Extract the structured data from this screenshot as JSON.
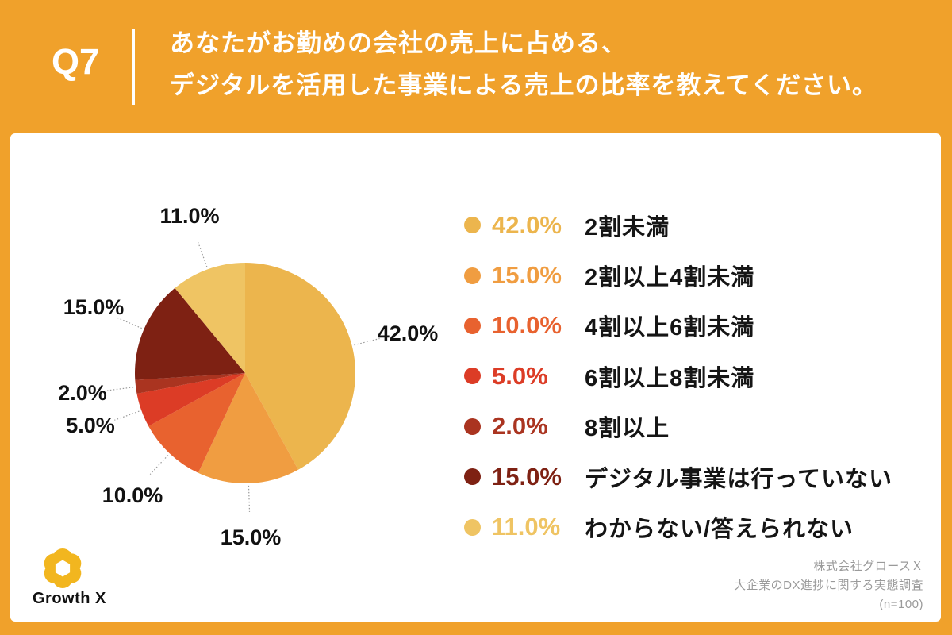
{
  "header": {
    "question_number": "Q7",
    "title_line1": "あなたがお勤めの会社の売上に占める、",
    "title_line2": "デジタルを活用した事業による売上の比率を教えてください。"
  },
  "chart_data": {
    "type": "pie",
    "title": "",
    "start_angle_deg": 0,
    "direction": "clockwise",
    "value_format": "percent_1dp",
    "legend_position": "right",
    "slices": [
      {
        "label": "2割未満",
        "value": 42.0,
        "color": "#ECB54D"
      },
      {
        "label": "2割以上4割未満",
        "value": 15.0,
        "color": "#F09D41"
      },
      {
        "label": "4割以上6割未満",
        "value": 10.0,
        "color": "#E8622F"
      },
      {
        "label": "6割以上8割未満",
        "value": 5.0,
        "color": "#DC3C26"
      },
      {
        "label": "8割以上",
        "value": 2.0,
        "color": "#AA3420"
      },
      {
        "label": "デジタル事業は行っていない",
        "value": 15.0,
        "color": "#7E2113"
      },
      {
        "label": "わからない/答えられない",
        "value": 11.0,
        "color": "#EFC463"
      }
    ]
  },
  "footer": {
    "logo_text": "Growth X",
    "source_line1": "株式会社グロースＸ",
    "source_line2": "大企業のDX進捗に関する実態調査",
    "source_line3": "(n=100)"
  },
  "colors": {
    "background_orange": "#F0A12B",
    "panel_white": "#FFFFFF",
    "text_black": "#151515",
    "source_gray": "#9A9A9A",
    "leader_line_gray": "#999999",
    "logo_gold": "#F2B61F"
  }
}
